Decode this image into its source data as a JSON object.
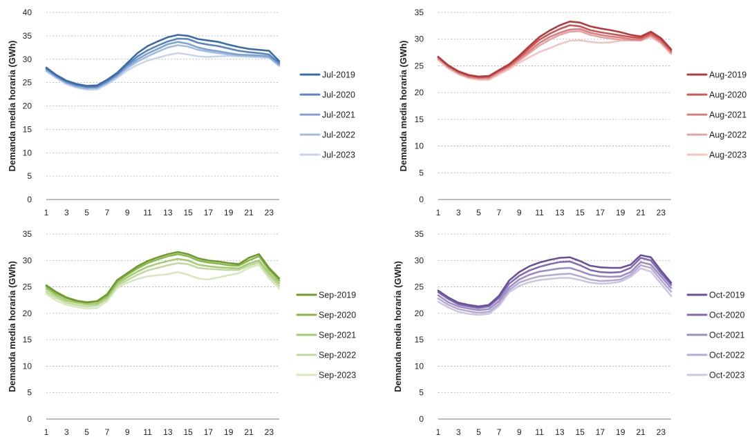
{
  "chart_data": [
    {
      "type": "line",
      "title": "",
      "xlabel": "",
      "ylabel": "Demanda media horaria (GWh)",
      "x": [
        1,
        2,
        3,
        4,
        5,
        6,
        7,
        8,
        9,
        10,
        11,
        12,
        13,
        14,
        15,
        16,
        17,
        18,
        19,
        20,
        21,
        22,
        23,
        24
      ],
      "x_tick_labels": [
        "1",
        "3",
        "5",
        "7",
        "9",
        "11",
        "13",
        "15",
        "17",
        "19",
        "21",
        "23"
      ],
      "ylim": [
        0,
        40
      ],
      "y_ticks": [
        0,
        5,
        10,
        15,
        20,
        25,
        30,
        35,
        40
      ],
      "grid": true,
      "legend_position": "right",
      "series": [
        {
          "name": "Jul-2019",
          "color": "#3c6aa8",
          "values": [
            28.2,
            26.6,
            25.4,
            24.7,
            24.3,
            24.4,
            25.6,
            27.1,
            29.2,
            31.3,
            32.8,
            33.8,
            34.7,
            35.2,
            35.0,
            34.3,
            34.0,
            33.7,
            33.1,
            32.6,
            32.2,
            32.0,
            31.8,
            29.6
          ]
        },
        {
          "name": "Jul-2020",
          "color": "#5a86bf",
          "values": [
            28.0,
            26.4,
            25.2,
            24.5,
            24.1,
            24.1,
            25.3,
            26.8,
            28.8,
            30.6,
            31.9,
            32.9,
            33.8,
            34.4,
            34.3,
            33.5,
            33.1,
            32.8,
            32.3,
            31.8,
            31.5,
            31.3,
            31.0,
            29.2
          ]
        },
        {
          "name": "Jul-2021",
          "color": "#7fa3d0",
          "values": [
            27.8,
            26.3,
            25.0,
            24.3,
            23.9,
            24.0,
            25.1,
            26.6,
            28.5,
            30.0,
            31.2,
            32.2,
            33.2,
            33.7,
            33.3,
            32.5,
            32.0,
            31.7,
            31.3,
            31.0,
            30.9,
            30.8,
            30.6,
            28.9
          ]
        },
        {
          "name": "Jul-2022",
          "color": "#a3bde0",
          "values": [
            27.6,
            26.1,
            24.9,
            24.1,
            23.7,
            23.8,
            24.9,
            26.3,
            28.1,
            29.5,
            30.6,
            31.6,
            32.5,
            33.0,
            32.7,
            32.0,
            31.6,
            31.3,
            31.0,
            30.8,
            30.7,
            30.6,
            30.4,
            28.7
          ]
        },
        {
          "name": "Jul-2023",
          "color": "#c9d5ec",
          "values": [
            27.4,
            25.9,
            24.6,
            23.9,
            23.5,
            23.5,
            24.6,
            26.0,
            27.6,
            28.8,
            29.7,
            30.3,
            30.9,
            31.3,
            31.0,
            30.6,
            30.5,
            30.6,
            30.7,
            30.6,
            30.5,
            30.4,
            30.3,
            28.5
          ]
        }
      ]
    },
    {
      "type": "line",
      "title": "",
      "xlabel": "",
      "ylabel": "Demanda media horaria (GWh)",
      "x": [
        1,
        2,
        3,
        4,
        5,
        6,
        7,
        8,
        9,
        10,
        11,
        12,
        13,
        14,
        15,
        16,
        17,
        18,
        19,
        20,
        21,
        22,
        23,
        24
      ],
      "x_tick_labels": [
        "1",
        "3",
        "5",
        "7",
        "9",
        "11",
        "13",
        "15",
        "17",
        "19",
        "21",
        "23"
      ],
      "ylim": [
        0,
        35
      ],
      "y_ticks": [
        0,
        5,
        10,
        15,
        20,
        25,
        30,
        35
      ],
      "grid": true,
      "legend_position": "right",
      "series": [
        {
          "name": "Aug-2019",
          "color": "#b53a3a",
          "values": [
            26.7,
            25.1,
            24.0,
            23.3,
            23.0,
            23.1,
            24.2,
            25.3,
            26.9,
            28.7,
            30.4,
            31.6,
            32.6,
            33.3,
            33.1,
            32.4,
            32.0,
            31.7,
            31.3,
            30.8,
            30.5,
            31.4,
            30.2,
            28.1
          ]
        },
        {
          "name": "Aug-2020",
          "color": "#cc5555",
          "values": [
            26.6,
            25.0,
            23.9,
            23.2,
            22.9,
            23.0,
            24.1,
            25.1,
            26.6,
            28.3,
            29.9,
            31.0,
            31.9,
            32.6,
            32.4,
            31.7,
            31.3,
            31.0,
            30.7,
            30.4,
            30.2,
            31.1,
            29.9,
            27.9
          ]
        },
        {
          "name": "Aug-2021",
          "color": "#d97f7f",
          "values": [
            26.5,
            24.9,
            23.7,
            23.0,
            22.7,
            22.8,
            23.9,
            24.9,
            26.3,
            27.8,
            29.3,
            30.4,
            31.2,
            31.8,
            31.9,
            31.2,
            30.8,
            30.5,
            30.3,
            30.0,
            29.9,
            30.8,
            29.6,
            27.6
          ]
        },
        {
          "name": "Aug-2022",
          "color": "#e5a3a3",
          "values": [
            26.3,
            24.7,
            23.6,
            22.9,
            22.6,
            22.6,
            23.7,
            24.7,
            26.0,
            27.4,
            28.8,
            29.9,
            30.8,
            31.4,
            31.5,
            30.8,
            30.4,
            30.1,
            29.9,
            29.8,
            29.8,
            30.6,
            29.4,
            27.4
          ]
        },
        {
          "name": "Aug-2023",
          "color": "#f0c6c3",
          "values": [
            26.1,
            24.5,
            23.4,
            22.7,
            22.4,
            22.4,
            23.4,
            24.4,
            25.6,
            26.6,
            27.6,
            28.3,
            29.1,
            29.7,
            29.8,
            29.5,
            29.3,
            29.4,
            29.7,
            29.8,
            29.7,
            30.4,
            29.2,
            27.2
          ]
        }
      ]
    },
    {
      "type": "line",
      "title": "",
      "xlabel": "",
      "ylabel": "Demanda media horaria (GWh)",
      "x": [
        1,
        2,
        3,
        4,
        5,
        6,
        7,
        8,
        9,
        10,
        11,
        12,
        13,
        14,
        15,
        16,
        17,
        18,
        19,
        20,
        21,
        22,
        23,
        24
      ],
      "x_tick_labels": [
        "1",
        "3",
        "5",
        "7",
        "9",
        "11",
        "13",
        "15",
        "17",
        "19",
        "21",
        "23"
      ],
      "ylim": [
        0,
        35
      ],
      "y_ticks": [
        0,
        5,
        10,
        15,
        20,
        25,
        30,
        35
      ],
      "grid": true,
      "legend_position": "right",
      "series": [
        {
          "name": "Sep-2019",
          "color": "#6f9a2f",
          "values": [
            25.3,
            24.0,
            23.0,
            22.4,
            22.1,
            22.3,
            23.6,
            26.3,
            27.6,
            28.9,
            29.9,
            30.6,
            31.2,
            31.6,
            31.2,
            30.4,
            30.0,
            29.8,
            29.5,
            29.3,
            30.5,
            31.2,
            28.6,
            26.6
          ]
        },
        {
          "name": "Sep-2020",
          "color": "#8ab84a",
          "values": [
            25.0,
            23.7,
            22.8,
            22.3,
            22.0,
            22.2,
            23.3,
            26.0,
            27.3,
            28.5,
            29.5,
            30.2,
            30.8,
            31.2,
            30.8,
            30.0,
            29.6,
            29.4,
            29.1,
            29.0,
            30.0,
            30.8,
            28.2,
            26.2
          ]
        },
        {
          "name": "Sep-2021",
          "color": "#a6cb75",
          "values": [
            24.6,
            23.3,
            22.4,
            22.0,
            21.7,
            21.8,
            23.0,
            25.6,
            26.8,
            27.9,
            28.8,
            29.4,
            29.9,
            30.3,
            30.0,
            29.2,
            28.9,
            28.7,
            28.6,
            28.5,
            29.4,
            30.0,
            27.6,
            25.7
          ]
        },
        {
          "name": "Sep-2022",
          "color": "#bfd99e",
          "values": [
            24.1,
            22.9,
            22.0,
            21.6,
            21.3,
            21.5,
            22.7,
            25.2,
            26.3,
            27.3,
            28.1,
            28.6,
            29.1,
            29.5,
            29.3,
            28.6,
            28.4,
            28.3,
            28.2,
            28.2,
            29.0,
            29.6,
            27.1,
            25.2
          ]
        },
        {
          "name": "Sep-2023",
          "color": "#d8e7c0",
          "values": [
            23.7,
            22.4,
            21.6,
            21.2,
            20.9,
            21.0,
            22.3,
            24.8,
            25.8,
            26.5,
            27.0,
            27.2,
            27.4,
            27.8,
            27.3,
            26.6,
            26.4,
            26.8,
            27.2,
            27.6,
            28.6,
            29.2,
            26.6,
            24.7
          ]
        }
      ]
    },
    {
      "type": "line",
      "title": "",
      "xlabel": "",
      "ylabel": "Demanda media horaria (GWh)",
      "x": [
        1,
        2,
        3,
        4,
        5,
        6,
        7,
        8,
        9,
        10,
        11,
        12,
        13,
        14,
        15,
        16,
        17,
        18,
        19,
        20,
        21,
        22,
        23,
        24
      ],
      "x_tick_labels": [
        "1",
        "3",
        "5",
        "7",
        "9",
        "11",
        "13",
        "15",
        "17",
        "19",
        "21",
        "23"
      ],
      "ylim": [
        0,
        35
      ],
      "y_ticks": [
        0,
        5,
        10,
        15,
        20,
        25,
        30,
        35
      ],
      "grid": true,
      "legend_position": "right",
      "series": [
        {
          "name": "Oct-2019",
          "color": "#6a4f9c",
          "values": [
            24.3,
            23.0,
            22.0,
            21.6,
            21.3,
            21.6,
            23.3,
            26.2,
            27.8,
            28.9,
            29.6,
            30.1,
            30.5,
            30.6,
            29.9,
            29.0,
            28.7,
            28.6,
            28.6,
            29.2,
            31.0,
            30.6,
            28.1,
            25.8
          ]
        },
        {
          "name": "Oct-2020",
          "color": "#8369b0",
          "values": [
            24.0,
            22.7,
            21.7,
            21.3,
            21.0,
            21.3,
            22.9,
            25.6,
            27.1,
            28.1,
            28.8,
            29.3,
            29.7,
            29.8,
            29.1,
            28.2,
            27.8,
            27.7,
            27.8,
            28.6,
            30.5,
            30.0,
            27.6,
            25.4
          ]
        },
        {
          "name": "Oct-2021",
          "color": "#9e8cc4",
          "values": [
            23.4,
            22.1,
            21.3,
            20.9,
            20.6,
            20.8,
            22.3,
            24.9,
            26.4,
            27.3,
            27.9,
            28.2,
            28.5,
            28.6,
            28.0,
            27.3,
            27.0,
            26.9,
            27.0,
            27.8,
            29.7,
            29.2,
            27.0,
            24.8
          ]
        },
        {
          "name": "Oct-2022",
          "color": "#b6abd5",
          "values": [
            22.8,
            21.6,
            20.8,
            20.4,
            20.1,
            20.3,
            21.8,
            24.4,
            25.8,
            26.5,
            27.0,
            27.2,
            27.4,
            27.5,
            27.0,
            26.4,
            26.1,
            26.2,
            26.4,
            27.3,
            29.1,
            28.6,
            26.3,
            24.1
          ]
        },
        {
          "name": "Oct-2023",
          "color": "#cdc6e3",
          "values": [
            22.2,
            21.1,
            20.3,
            19.9,
            19.7,
            19.9,
            21.4,
            24.0,
            25.2,
            25.9,
            26.3,
            26.5,
            26.7,
            26.7,
            26.3,
            25.8,
            25.6,
            25.7,
            26.0,
            26.9,
            28.5,
            27.9,
            25.6,
            23.3
          ]
        }
      ]
    }
  ]
}
